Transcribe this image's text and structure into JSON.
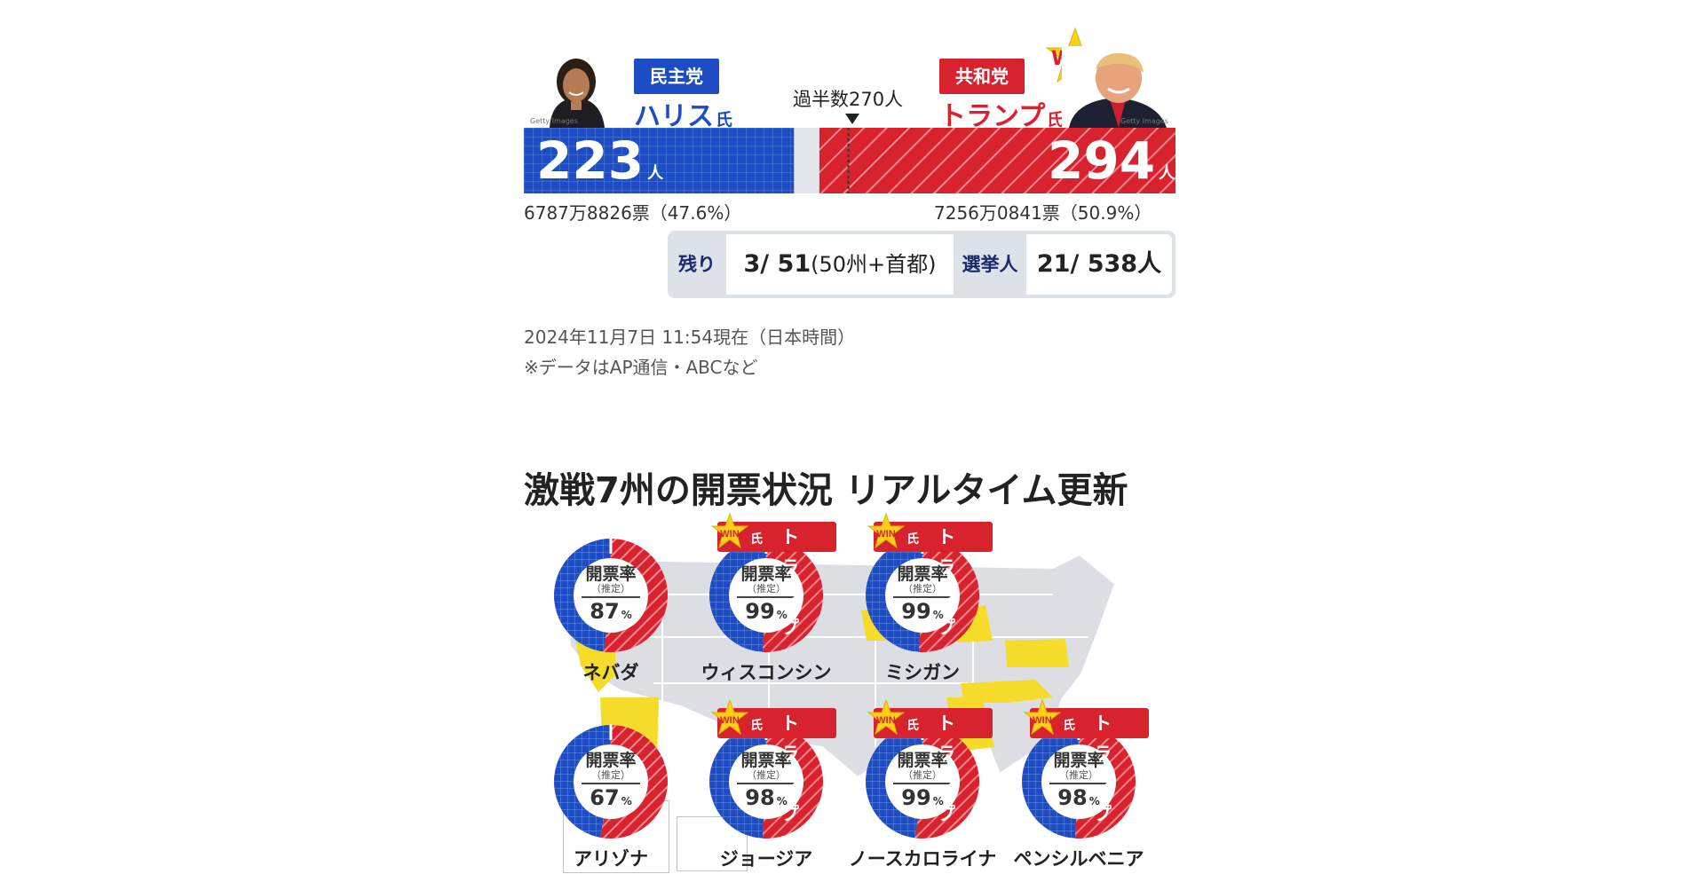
{
  "candidates": {
    "dem": {
      "party": "民主党",
      "name": "ハリス",
      "suffix": "氏",
      "electoral": "223",
      "unit": "人",
      "popular": "6787万8826票（47.6%）",
      "color": "#1d4dc4"
    },
    "rep": {
      "party": "共和党",
      "name": "トランプ",
      "suffix": "氏",
      "electoral": "294",
      "unit": "人",
      "popular": "7256万0841票（50.9%）",
      "color": "#d8222e",
      "win": "WIN"
    }
  },
  "majority": {
    "label": "過半数270人",
    "value": 270,
    "total": 538
  },
  "photo_credit": "Getty Images",
  "status": {
    "remaining_label": "残り",
    "remaining_value": "3/ 51",
    "remaining_extra": "(50州+首都)",
    "electors_label": "選挙人",
    "electors_value": "21/ 538人"
  },
  "timestamp": "2024年11月7日 11:54現在（日本時間）",
  "source_note": "※データはAP通信・ABCなど",
  "section_title": "激戦7州の開票状況 リアルタイム更新",
  "gauge_label": "開票率",
  "gauge_sub": "（推定）",
  "percent_unit": "%",
  "win_label": "WIN",
  "win_name": "トランプ",
  "win_suffix": "氏",
  "states": [
    {
      "name": "ネバダ",
      "reported_pct": 87,
      "dem_share": 0.48,
      "winner": null
    },
    {
      "name": "ウィスコンシン",
      "reported_pct": 99,
      "dem_share": 0.49,
      "winner": "トランプ"
    },
    {
      "name": "ミシガン",
      "reported_pct": 99,
      "dem_share": 0.49,
      "winner": "トランプ"
    },
    {
      "name": "アリゾナ",
      "reported_pct": 67,
      "dem_share": 0.47,
      "winner": null
    },
    {
      "name": "ジョージア",
      "reported_pct": 98,
      "dem_share": 0.49,
      "winner": "トランプ"
    },
    {
      "name": "ノースカロライナ",
      "reported_pct": 99,
      "dem_share": 0.48,
      "winner": "トランプ"
    },
    {
      "name": "ペンシルベニア",
      "reported_pct": 98,
      "dem_share": 0.49,
      "winner": "トランプ"
    }
  ]
}
